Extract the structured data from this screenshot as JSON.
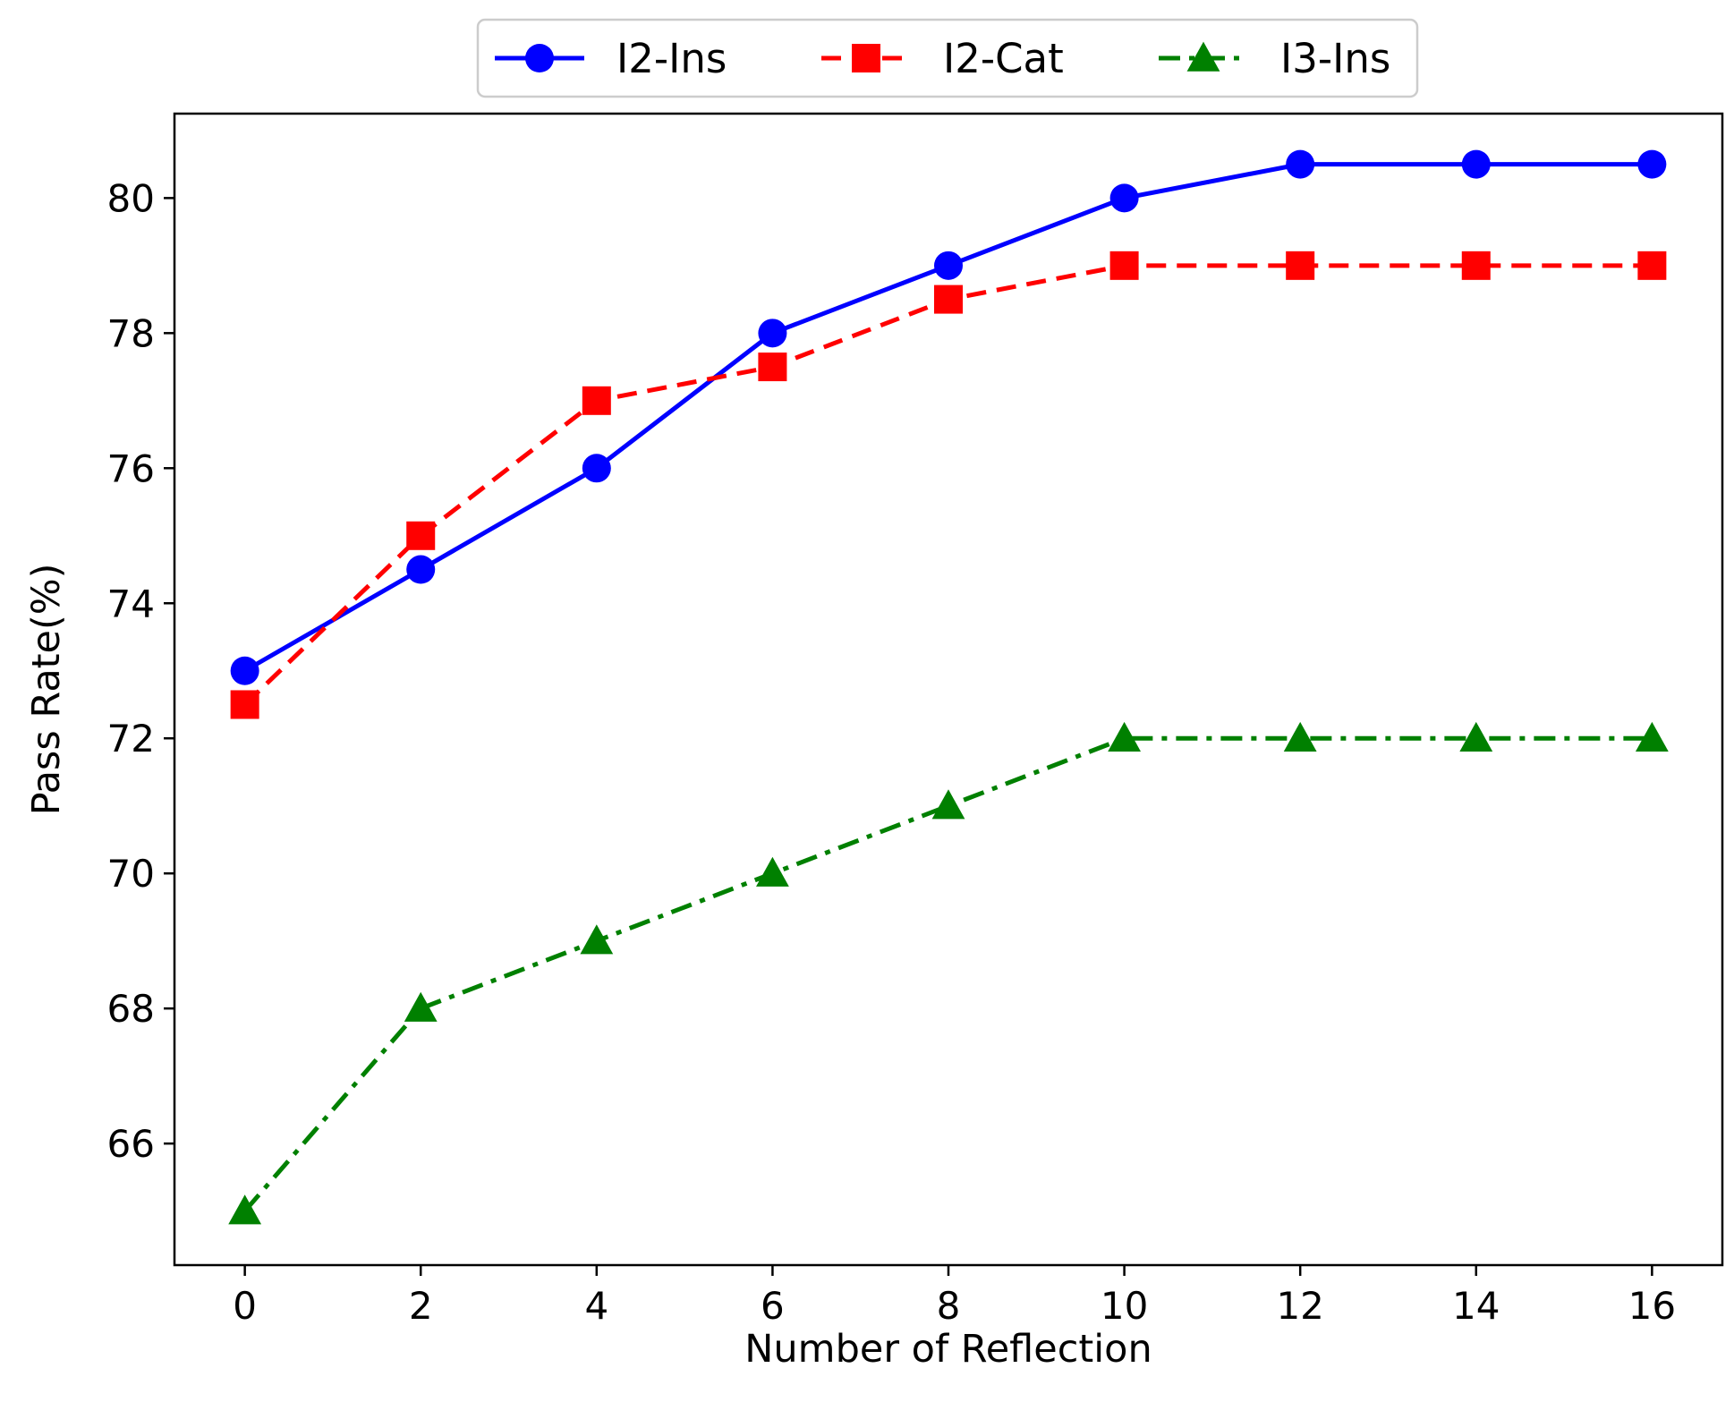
{
  "chart_data": {
    "type": "line",
    "title": "",
    "xlabel": "Number of Reflection",
    "ylabel": "Pass Rate(%)",
    "x": [
      0,
      2,
      4,
      6,
      8,
      10,
      12,
      14,
      16
    ],
    "xlim": [
      -0.8,
      16.8
    ],
    "ylim": [
      64.2,
      81.25
    ],
    "xticks": [
      0,
      2,
      4,
      6,
      8,
      10,
      12,
      14,
      16
    ],
    "yticks": [
      66,
      68,
      70,
      72,
      74,
      76,
      78,
      80
    ],
    "grid": false,
    "legend_position": "top-center, outside plot",
    "series": [
      {
        "name": "I2-Ins",
        "values": [
          73,
          74.5,
          76,
          78,
          79,
          80,
          80.5,
          80.5,
          80.5
        ],
        "color": "#0000ff",
        "line_style": "solid",
        "marker": "circle"
      },
      {
        "name": "I2-Cat",
        "values": [
          72.5,
          75,
          77,
          77.5,
          78.5,
          79,
          79,
          79,
          79
        ],
        "color": "#ff0000",
        "line_style": "dashed",
        "marker": "square"
      },
      {
        "name": "I3-Ins",
        "values": [
          65,
          68,
          69,
          70,
          71,
          72,
          72,
          72,
          72
        ],
        "color": "#008000",
        "line_style": "dashdot",
        "marker": "triangle"
      }
    ]
  }
}
